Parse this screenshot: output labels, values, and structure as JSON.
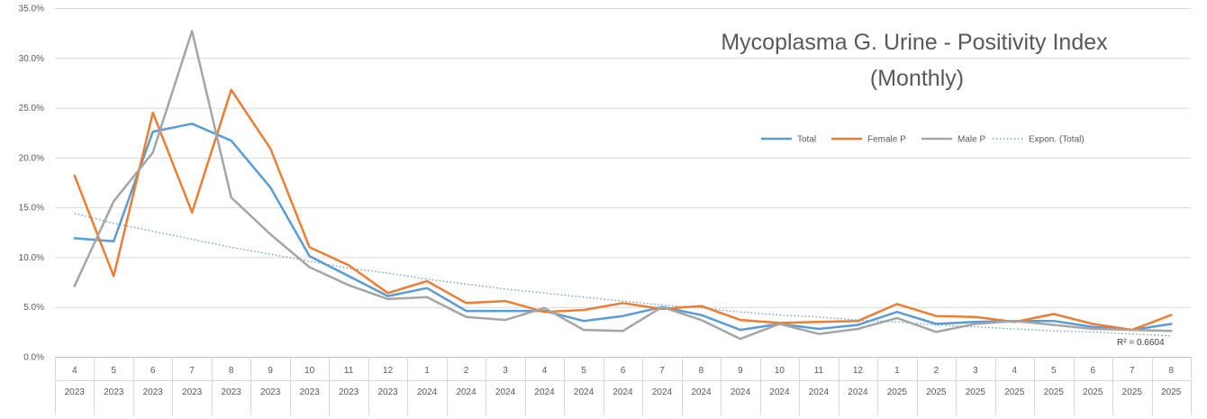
{
  "chart_data": {
    "type": "line",
    "title": "Mycoplasma G. Urine - Positivity Index",
    "subtitle": "(Monthly)",
    "xlabel": "",
    "ylabel": "",
    "ylim": [
      0,
      35
    ],
    "y_ticks": [
      "0.0%",
      "5.0%",
      "10.0%",
      "15.0%",
      "20.0%",
      "25.0%",
      "30.0%",
      "35.0%"
    ],
    "y_tick_values": [
      0,
      5,
      10,
      15,
      20,
      25,
      30,
      35
    ],
    "grid": "horizontal",
    "legend_position": "top-right",
    "categories": [
      {
        "month": "4",
        "year": "2023"
      },
      {
        "month": "5",
        "year": "2023"
      },
      {
        "month": "6",
        "year": "2023"
      },
      {
        "month": "7",
        "year": "2023"
      },
      {
        "month": "8",
        "year": "2023"
      },
      {
        "month": "9",
        "year": "2023"
      },
      {
        "month": "10",
        "year": "2023"
      },
      {
        "month": "11",
        "year": "2023"
      },
      {
        "month": "12",
        "year": "2023"
      },
      {
        "month": "1",
        "year": "2024"
      },
      {
        "month": "2",
        "year": "2024"
      },
      {
        "month": "3",
        "year": "2024"
      },
      {
        "month": "4",
        "year": "2024"
      },
      {
        "month": "5",
        "year": "2024"
      },
      {
        "month": "6",
        "year": "2024"
      },
      {
        "month": "7",
        "year": "2024"
      },
      {
        "month": "8",
        "year": "2024"
      },
      {
        "month": "9",
        "year": "2024"
      },
      {
        "month": "10",
        "year": "2024"
      },
      {
        "month": "11",
        "year": "2024"
      },
      {
        "month": "12",
        "year": "2024"
      },
      {
        "month": "1",
        "year": "2025"
      },
      {
        "month": "2",
        "year": "2025"
      },
      {
        "month": "3",
        "year": "2025"
      },
      {
        "month": "4",
        "year": "2025"
      },
      {
        "month": "5",
        "year": "2025"
      },
      {
        "month": "6",
        "year": "2025"
      },
      {
        "month": "7",
        "year": "2025"
      },
      {
        "month": "8",
        "year": "2025"
      }
    ],
    "series": [
      {
        "name": "Total",
        "color": "#5b9bd5",
        "style": "solid",
        "values": [
          11.9,
          11.6,
          22.6,
          23.4,
          21.7,
          17.0,
          10.1,
          8.1,
          6.1,
          6.9,
          4.6,
          4.6,
          4.6,
          3.6,
          4.1,
          5.0,
          4.2,
          2.7,
          3.3,
          2.8,
          3.2,
          4.5,
          3.3,
          3.5,
          3.6,
          3.6,
          3.0,
          2.7,
          3.3
        ]
      },
      {
        "name": "Female P",
        "color": "#ed7d31",
        "style": "solid",
        "values": [
          18.2,
          8.1,
          24.5,
          14.5,
          26.8,
          20.9,
          11.0,
          9.2,
          6.4,
          7.6,
          5.4,
          5.6,
          4.5,
          4.7,
          5.4,
          4.8,
          5.1,
          3.7,
          3.4,
          3.5,
          3.6,
          5.3,
          4.1,
          4.0,
          3.5,
          4.3,
          3.3,
          2.7,
          4.2
        ]
      },
      {
        "name": "Male P",
        "color": "#a5a5a5",
        "style": "solid",
        "values": [
          7.1,
          15.6,
          20.5,
          32.7,
          16.0,
          12.3,
          9.0,
          7.2,
          5.8,
          6.0,
          4.0,
          3.7,
          4.9,
          2.7,
          2.6,
          5.0,
          3.7,
          1.8,
          3.3,
          2.3,
          2.8,
          3.9,
          2.5,
          3.3,
          3.6,
          3.2,
          2.8,
          2.7,
          2.6
        ]
      },
      {
        "name": "Expon. (Total)",
        "color": "#5b9bd5",
        "style": "dotted",
        "trendline": "exponential",
        "values": [
          14.4,
          13.4,
          12.6,
          11.8,
          11.0,
          10.3,
          9.6,
          8.9,
          8.4,
          7.8,
          7.3,
          6.8,
          6.4,
          6.0,
          5.6,
          5.2,
          4.9,
          4.5,
          4.2,
          4.0,
          3.7,
          3.5,
          3.2,
          3.0,
          2.8,
          2.6,
          2.5,
          2.3,
          2.1
        ]
      }
    ],
    "annotations": [
      {
        "text": "R² = 0.6604"
      }
    ]
  }
}
